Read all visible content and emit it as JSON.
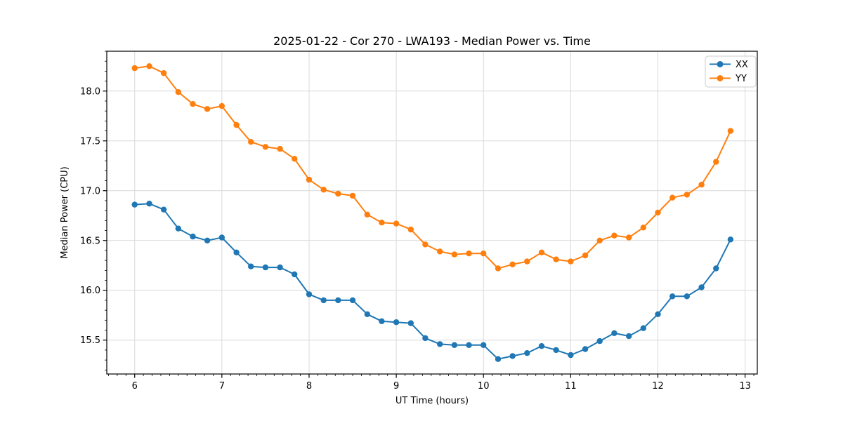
{
  "figure": {
    "background": "#ffffff"
  },
  "chart_data": {
    "type": "line",
    "title": "2025-01-22 - Cor 270 - LWA193 - Median Power vs. Time",
    "xlabel": "UT Time (hours)",
    "ylabel": "Median Power (CPU)",
    "xlim": [
      5.68,
      13.14
    ],
    "ylim": [
      15.16,
      18.4
    ],
    "xticks": [
      6,
      7,
      8,
      9,
      10,
      11,
      12,
      13
    ],
    "yticks": [
      15.5,
      16.0,
      16.5,
      17.0,
      17.5,
      18.0
    ],
    "minor_tick_step": 0.1,
    "grid": true,
    "grid_color": "#d9d9d9",
    "legend_position": "upper right",
    "x": [
      6.0,
      6.167,
      6.333,
      6.5,
      6.667,
      6.833,
      7.0,
      7.167,
      7.333,
      7.5,
      7.667,
      7.833,
      8.0,
      8.167,
      8.333,
      8.5,
      8.667,
      8.833,
      9.0,
      9.167,
      9.333,
      9.5,
      9.667,
      9.833,
      10.0,
      10.167,
      10.333,
      10.5,
      10.667,
      10.833,
      11.0,
      11.167,
      11.333,
      11.5,
      11.667,
      11.833,
      12.0,
      12.167,
      12.333,
      12.5,
      12.667,
      12.833
    ],
    "series": [
      {
        "name": "XX",
        "color": "#1f77b4",
        "marker": "circle",
        "values": [
          16.86,
          16.87,
          16.81,
          16.62,
          16.54,
          16.5,
          16.53,
          16.38,
          16.24,
          16.23,
          16.23,
          16.16,
          15.96,
          15.9,
          15.9,
          15.9,
          15.76,
          15.69,
          15.68,
          15.67,
          15.52,
          15.46,
          15.45,
          15.45,
          15.45,
          15.31,
          15.34,
          15.37,
          15.44,
          15.4,
          15.35,
          15.41,
          15.49,
          15.57,
          15.54,
          15.62,
          15.76,
          15.94,
          15.94,
          16.03,
          16.22,
          16.51
        ]
      },
      {
        "name": "YY",
        "color": "#ff7f0e",
        "marker": "circle",
        "values": [
          18.23,
          18.25,
          18.18,
          17.99,
          17.87,
          17.82,
          17.85,
          17.66,
          17.49,
          17.44,
          17.42,
          17.32,
          17.11,
          17.01,
          16.97,
          16.95,
          16.76,
          16.68,
          16.67,
          16.61,
          16.46,
          16.39,
          16.36,
          16.37,
          16.37,
          16.22,
          16.26,
          16.29,
          16.38,
          16.31,
          16.29,
          16.35,
          16.5,
          16.55,
          16.53,
          16.63,
          16.78,
          16.93,
          16.96,
          17.06,
          17.29,
          17.6
        ]
      }
    ]
  }
}
